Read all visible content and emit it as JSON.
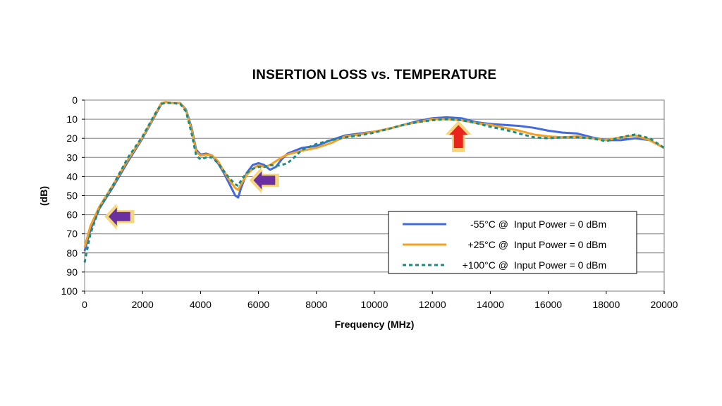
{
  "chart_data": {
    "type": "line",
    "title": "INSERTION LOSS vs. TEMPERATURE",
    "xlabel": "Frequency (MHz)",
    "ylabel": "(dB)",
    "xlim": [
      0,
      20000
    ],
    "ylim": [
      0,
      100
    ],
    "y_inverted": true,
    "x_ticks": [
      0,
      2000,
      4000,
      6000,
      8000,
      10000,
      12000,
      14000,
      16000,
      18000,
      20000
    ],
    "y_ticks": [
      0,
      10,
      20,
      30,
      40,
      50,
      60,
      70,
      80,
      90,
      100
    ],
    "grid": "horizontal",
    "legend_position": "bottom-right",
    "series": [
      {
        "name": "-55°C @",
        "condition": "Input Power = 0 dBm",
        "color": "#4169E1",
        "style": "solid",
        "points": [
          [
            0,
            79
          ],
          [
            200,
            68
          ],
          [
            500,
            57
          ],
          [
            1000,
            45
          ],
          [
            1500,
            32
          ],
          [
            2000,
            20
          ],
          [
            2400,
            9
          ],
          [
            2650,
            2
          ],
          [
            2800,
            1
          ],
          [
            3000,
            1.5
          ],
          [
            3300,
            1.5
          ],
          [
            3500,
            5
          ],
          [
            3700,
            15
          ],
          [
            3850,
            26
          ],
          [
            4000,
            28.5
          ],
          [
            4200,
            28
          ],
          [
            4400,
            29
          ],
          [
            4600,
            33
          ],
          [
            4800,
            38
          ],
          [
            5000,
            44
          ],
          [
            5200,
            50
          ],
          [
            5300,
            51
          ],
          [
            5400,
            46
          ],
          [
            5600,
            38
          ],
          [
            5800,
            34
          ],
          [
            6000,
            33
          ],
          [
            6200,
            34
          ],
          [
            6400,
            36.5
          ],
          [
            6600,
            35
          ],
          [
            6800,
            31
          ],
          [
            7000,
            28
          ],
          [
            7500,
            25
          ],
          [
            8000,
            24
          ],
          [
            8500,
            21
          ],
          [
            9000,
            18.5
          ],
          [
            9500,
            17.5
          ],
          [
            10000,
            16.5
          ],
          [
            10500,
            15
          ],
          [
            11000,
            13
          ],
          [
            11500,
            11
          ],
          [
            12000,
            9.5
          ],
          [
            12500,
            9
          ],
          [
            13000,
            9.5
          ],
          [
            13500,
            11.5
          ],
          [
            14000,
            12.5
          ],
          [
            14500,
            13
          ],
          [
            15000,
            13.5
          ],
          [
            15500,
            14.5
          ],
          [
            16000,
            16
          ],
          [
            16500,
            17
          ],
          [
            17000,
            17.5
          ],
          [
            17500,
            19.5
          ],
          [
            18000,
            21
          ],
          [
            18500,
            21
          ],
          [
            19000,
            20
          ],
          [
            19500,
            21
          ],
          [
            20000,
            25
          ]
        ]
      },
      {
        "name": "+25°C @",
        "condition": "Input Power = 0 dBm",
        "color": "#F5A020",
        "style": "solid",
        "points": [
          [
            0,
            77
          ],
          [
            200,
            66
          ],
          [
            500,
            56
          ],
          [
            1000,
            44
          ],
          [
            1500,
            31
          ],
          [
            2000,
            19.5
          ],
          [
            2400,
            8.5
          ],
          [
            2650,
            1.5
          ],
          [
            2800,
            1
          ],
          [
            3000,
            1.5
          ],
          [
            3300,
            1.5
          ],
          [
            3500,
            5.5
          ],
          [
            3700,
            16
          ],
          [
            3850,
            27
          ],
          [
            4000,
            29
          ],
          [
            4200,
            28.5
          ],
          [
            4400,
            29
          ],
          [
            4600,
            32
          ],
          [
            4800,
            37
          ],
          [
            5000,
            42
          ],
          [
            5200,
            46
          ],
          [
            5300,
            47
          ],
          [
            5400,
            44
          ],
          [
            5600,
            39
          ],
          [
            5800,
            36
          ],
          [
            6000,
            34
          ],
          [
            6200,
            35
          ],
          [
            6400,
            34
          ],
          [
            6600,
            32
          ],
          [
            6800,
            30
          ],
          [
            7000,
            28.5
          ],
          [
            7500,
            26.5
          ],
          [
            8000,
            25
          ],
          [
            8500,
            22.5
          ],
          [
            9000,
            19
          ],
          [
            9500,
            18
          ],
          [
            10000,
            16.5
          ],
          [
            10500,
            15
          ],
          [
            11000,
            13
          ],
          [
            11500,
            11.5
          ],
          [
            12000,
            10
          ],
          [
            12500,
            10
          ],
          [
            13000,
            10.5
          ],
          [
            13500,
            12
          ],
          [
            14000,
            13
          ],
          [
            14500,
            14.5
          ],
          [
            15000,
            16
          ],
          [
            15500,
            18
          ],
          [
            16000,
            19
          ],
          [
            16500,
            19.5
          ],
          [
            17000,
            19
          ],
          [
            17500,
            20
          ],
          [
            18000,
            21
          ],
          [
            18500,
            19.5
          ],
          [
            19000,
            18.5
          ],
          [
            19500,
            21
          ],
          [
            20000,
            25
          ]
        ]
      },
      {
        "name": "+100°C @",
        "condition": "Input Power = 0 dBm",
        "color": "#1A8C80",
        "style": "dashed",
        "points": [
          [
            0,
            85
          ],
          [
            200,
            70
          ],
          [
            500,
            57
          ],
          [
            1000,
            44
          ],
          [
            1500,
            30
          ],
          [
            2000,
            19
          ],
          [
            2400,
            8
          ],
          [
            2650,
            2
          ],
          [
            2800,
            1.5
          ],
          [
            3000,
            1.5
          ],
          [
            3300,
            2
          ],
          [
            3500,
            6
          ],
          [
            3700,
            18
          ],
          [
            3850,
            29
          ],
          [
            4000,
            31
          ],
          [
            4200,
            30
          ],
          [
            4400,
            30
          ],
          [
            4600,
            33
          ],
          [
            4800,
            37
          ],
          [
            5000,
            41
          ],
          [
            5200,
            44
          ],
          [
            5300,
            45
          ],
          [
            5400,
            42
          ],
          [
            5600,
            38
          ],
          [
            5800,
            36
          ],
          [
            6000,
            35
          ],
          [
            6200,
            35
          ],
          [
            6400,
            34
          ],
          [
            6600,
            34.5
          ],
          [
            6800,
            34
          ],
          [
            7000,
            33
          ],
          [
            7200,
            30.5
          ],
          [
            7500,
            26
          ],
          [
            8000,
            23
          ],
          [
            8500,
            21
          ],
          [
            9000,
            19.5
          ],
          [
            9500,
            18.5
          ],
          [
            10000,
            17
          ],
          [
            10500,
            15
          ],
          [
            11000,
            13
          ],
          [
            11500,
            11.5
          ],
          [
            12000,
            10.5
          ],
          [
            12500,
            10
          ],
          [
            13000,
            10.5
          ],
          [
            13500,
            12
          ],
          [
            14000,
            14
          ],
          [
            14500,
            15.5
          ],
          [
            15000,
            17.5
          ],
          [
            15500,
            19.5
          ],
          [
            16000,
            20
          ],
          [
            16500,
            19.5
          ],
          [
            17000,
            19.5
          ],
          [
            17500,
            20
          ],
          [
            18000,
            21.5
          ],
          [
            18500,
            19.5
          ],
          [
            19000,
            18
          ],
          [
            19500,
            20
          ],
          [
            20000,
            25
          ]
        ]
      }
    ],
    "annotations": [
      {
        "type": "arrow",
        "direction": "left",
        "fill": "#6A2FA0",
        "outline": "#F7D57A",
        "x": 1200,
        "y": 61
      },
      {
        "type": "arrow",
        "direction": "left",
        "fill": "#6A2FA0",
        "outline": "#F7D57A",
        "x": 6200,
        "y": 42
      },
      {
        "type": "arrow",
        "direction": "up",
        "fill": "#E8241C",
        "outline": "#F7D57A",
        "x": 12900,
        "y": 19
      }
    ]
  }
}
